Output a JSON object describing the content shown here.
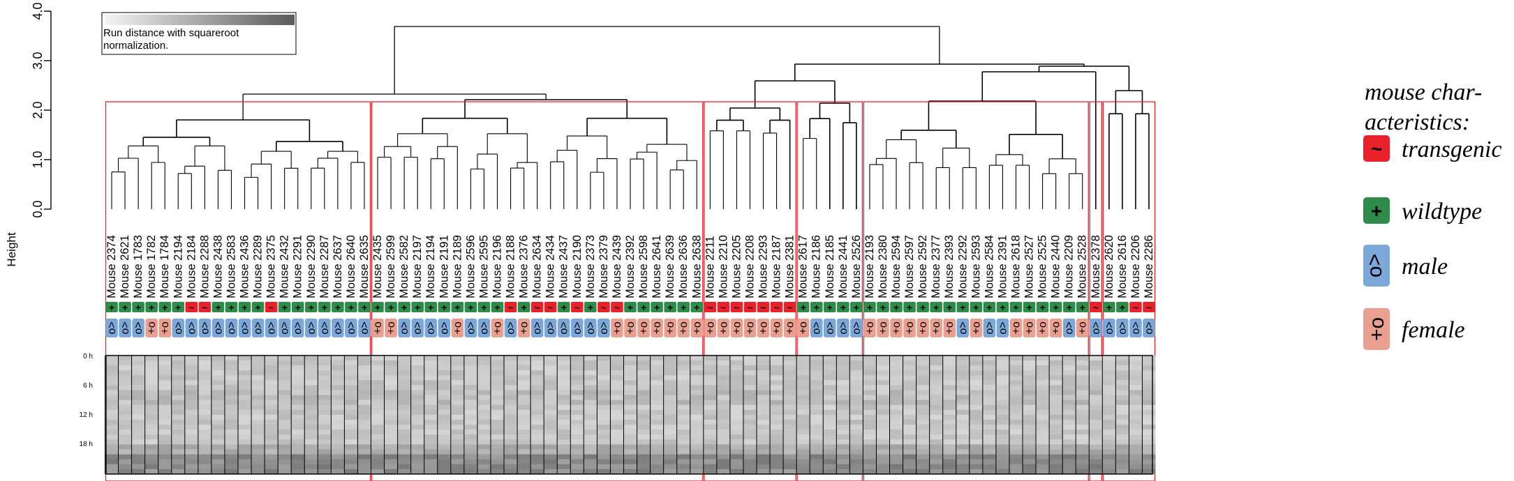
{
  "y_axis": {
    "label": "Height",
    "ticks": [
      "0.0",
      "1.0",
      "2.0",
      "3.0",
      "4.0"
    ]
  },
  "gradient_legend": {
    "text_line1": "Run distance with squareroot",
    "text_line2": " normalization."
  },
  "time_labels": [
    "0 h",
    "6 h",
    "12 h",
    "18 h"
  ],
  "mice": [
    {
      "label": "Mouse 2374",
      "type": "wildtype",
      "sex": "male"
    },
    {
      "label": "Mouse 2621",
      "type": "wildtype",
      "sex": "male"
    },
    {
      "label": "Mouse 1783",
      "type": "wildtype",
      "sex": "male"
    },
    {
      "label": "Mouse 1782",
      "type": "wildtype",
      "sex": "female"
    },
    {
      "label": "Mouse 1784",
      "type": "wildtype",
      "sex": "female"
    },
    {
      "label": "Mouse 2194",
      "type": "wildtype",
      "sex": "male"
    },
    {
      "label": "Mouse 2184",
      "type": "transgenic",
      "sex": "male"
    },
    {
      "label": "Mouse 2288",
      "type": "transgenic",
      "sex": "male"
    },
    {
      "label": "Mouse 2438",
      "type": "wildtype",
      "sex": "male"
    },
    {
      "label": "Mouse 2583",
      "type": "wildtype",
      "sex": "male"
    },
    {
      "label": "Mouse 2436",
      "type": "wildtype",
      "sex": "male"
    },
    {
      "label": "Mouse 2289",
      "type": "wildtype",
      "sex": "male"
    },
    {
      "label": "Mouse 2375",
      "type": "transgenic",
      "sex": "male"
    },
    {
      "label": "Mouse 2432",
      "type": "wildtype",
      "sex": "male"
    },
    {
      "label": "Mouse 2291",
      "type": "wildtype",
      "sex": "male"
    },
    {
      "label": "Mouse 2290",
      "type": "wildtype",
      "sex": "male"
    },
    {
      "label": "Mouse 2287",
      "type": "wildtype",
      "sex": "male"
    },
    {
      "label": "Mouse 2637",
      "type": "wildtype",
      "sex": "male"
    },
    {
      "label": "Mouse 2640",
      "type": "wildtype",
      "sex": "male"
    },
    {
      "label": "Mouse 2635",
      "type": "wildtype",
      "sex": "male"
    },
    {
      "label": "Mouse 2435",
      "type": "wildtype",
      "sex": "female"
    },
    {
      "label": "Mouse 2599",
      "type": "wildtype",
      "sex": "female"
    },
    {
      "label": "Mouse 2582",
      "type": "wildtype",
      "sex": "male"
    },
    {
      "label": "Mouse 2197",
      "type": "wildtype",
      "sex": "male"
    },
    {
      "label": "Mouse 2194",
      "type": "wildtype",
      "sex": "male"
    },
    {
      "label": "Mouse 2191",
      "type": "wildtype",
      "sex": "male"
    },
    {
      "label": "Mouse 2189",
      "type": "wildtype",
      "sex": "female"
    },
    {
      "label": "Mouse 2596",
      "type": "wildtype",
      "sex": "male"
    },
    {
      "label": "Mouse 2595",
      "type": "wildtype",
      "sex": "male"
    },
    {
      "label": "Mouse 2196",
      "type": "wildtype",
      "sex": "female"
    },
    {
      "label": "Mouse 2188",
      "type": "transgenic",
      "sex": "male"
    },
    {
      "label": "Mouse 2376",
      "type": "wildtype",
      "sex": "female"
    },
    {
      "label": "Mouse 2634",
      "type": "transgenic",
      "sex": "male"
    },
    {
      "label": "Mouse 2434",
      "type": "transgenic",
      "sex": "male"
    },
    {
      "label": "Mouse 2437",
      "type": "wildtype",
      "sex": "male"
    },
    {
      "label": "Mouse 2190",
      "type": "transgenic",
      "sex": "male"
    },
    {
      "label": "Mouse 2373",
      "type": "wildtype",
      "sex": "male"
    },
    {
      "label": "Mouse 2379",
      "type": "transgenic",
      "sex": "male"
    },
    {
      "label": "Mouse 2439",
      "type": "transgenic",
      "sex": "female"
    },
    {
      "label": "Mouse 2392",
      "type": "wildtype",
      "sex": "female"
    },
    {
      "label": "Mouse 2598",
      "type": "wildtype",
      "sex": "female"
    },
    {
      "label": "Mouse 2641",
      "type": "wildtype",
      "sex": "female"
    },
    {
      "label": "Mouse 2639",
      "type": "wildtype",
      "sex": "female"
    },
    {
      "label": "Mouse 2636",
      "type": "wildtype",
      "sex": "female"
    },
    {
      "label": "Mouse 2638",
      "type": "wildtype",
      "sex": "female"
    },
    {
      "label": "Mouse 2211",
      "type": "transgenic",
      "sex": "female"
    },
    {
      "label": "Mouse 2210",
      "type": "transgenic",
      "sex": "female"
    },
    {
      "label": "Mouse 2205",
      "type": "transgenic",
      "sex": "female"
    },
    {
      "label": "Mouse 2208",
      "type": "transgenic",
      "sex": "female"
    },
    {
      "label": "Mouse 2293",
      "type": "transgenic",
      "sex": "female"
    },
    {
      "label": "Mouse 2187",
      "type": "transgenic",
      "sex": "female"
    },
    {
      "label": "Mouse 2381",
      "type": "transgenic",
      "sex": "female"
    },
    {
      "label": "Mouse 2617",
      "type": "wildtype",
      "sex": "female"
    },
    {
      "label": "Mouse 2186",
      "type": "wildtype",
      "sex": "male"
    },
    {
      "label": "Mouse 2185",
      "type": "wildtype",
      "sex": "male"
    },
    {
      "label": "Mouse 2441",
      "type": "wildtype",
      "sex": "male"
    },
    {
      "label": "Mouse 2526",
      "type": "wildtype",
      "sex": "male"
    },
    {
      "label": "Mouse 2193",
      "type": "wildtype",
      "sex": "female"
    },
    {
      "label": "Mouse 2380",
      "type": "wildtype",
      "sex": "female"
    },
    {
      "label": "Mouse 2594",
      "type": "wildtype",
      "sex": "female"
    },
    {
      "label": "Mouse 2597",
      "type": "wildtype",
      "sex": "female"
    },
    {
      "label": "Mouse 2592",
      "type": "wildtype",
      "sex": "female"
    },
    {
      "label": "Mouse 2377",
      "type": "wildtype",
      "sex": "female"
    },
    {
      "label": "Mouse 2393",
      "type": "wildtype",
      "sex": "female"
    },
    {
      "label": "Mouse 2292",
      "type": "wildtype",
      "sex": "male"
    },
    {
      "label": "Mouse 2593",
      "type": "wildtype",
      "sex": "female"
    },
    {
      "label": "Mouse 2584",
      "type": "wildtype",
      "sex": "male"
    },
    {
      "label": "Mouse 2391",
      "type": "wildtype",
      "sex": "male"
    },
    {
      "label": "Mouse 2618",
      "type": "wildtype",
      "sex": "female"
    },
    {
      "label": "Mouse 2527",
      "type": "wildtype",
      "sex": "female"
    },
    {
      "label": "Mouse 2525",
      "type": "wildtype",
      "sex": "female"
    },
    {
      "label": "Mouse 2440",
      "type": "wildtype",
      "sex": "female"
    },
    {
      "label": "Mouse 2209",
      "type": "wildtype",
      "sex": "male"
    },
    {
      "label": "Mouse 2528",
      "type": "wildtype",
      "sex": "female"
    },
    {
      "label": "Mouse 2378",
      "type": "transgenic",
      "sex": "male"
    },
    {
      "label": "Mouse 2620",
      "type": "wildtype",
      "sex": "male"
    },
    {
      "label": "Mouse 2616",
      "type": "wildtype",
      "sex": "male"
    },
    {
      "label": "Mouse 2206",
      "type": "transgenic",
      "sex": "male"
    },
    {
      "label": "Mouse 2286",
      "type": "transgenic",
      "sex": "male"
    }
  ],
  "legend": {
    "title_line1": "mouse char-",
    "title_line2": "acteristics:",
    "items": [
      {
        "key": "transgenic",
        "label": "transgenic",
        "glyph": "~",
        "color": "#e8212b"
      },
      {
        "key": "wildtype",
        "label": "wildtype",
        "glyph": "+",
        "color": "#2e8b4a"
      },
      {
        "key": "male",
        "label": "male",
        "glyph": "male",
        "color": "#7ba7d9"
      },
      {
        "key": "female",
        "label": "female",
        "glyph": "female",
        "color": "#e9a090"
      }
    ]
  },
  "colors": {
    "cluster_box": "#e8212b",
    "heatmap_base": "#c0c0c0"
  }
}
